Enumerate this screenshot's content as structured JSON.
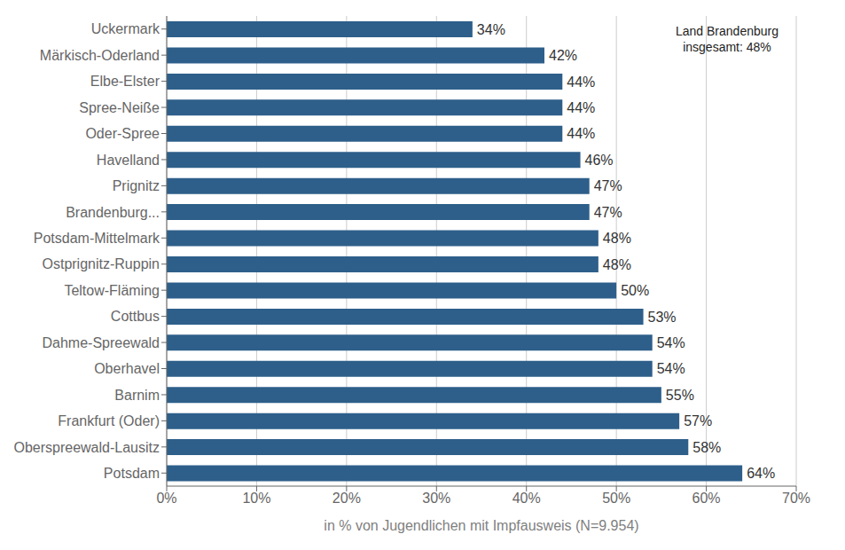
{
  "chart_data": {
    "type": "bar",
    "orientation": "horizontal",
    "categories": [
      "Uckermark",
      "Märkisch-Oderland",
      "Elbe-Elster",
      "Spree-Neiße",
      "Oder-Spree",
      "Havelland",
      "Prignitz",
      "Brandenburg...",
      "Potsdam-Mittelmark",
      "Ostprignitz-Ruppin",
      "Teltow-Fläming",
      "Cottbus",
      "Dahme-Spreewald",
      "Oberhavel",
      "Barnim",
      "Frankfurt (Oder)",
      "Oberspreewald-Lausitz",
      "Potsdam"
    ],
    "values": [
      34,
      42,
      44,
      44,
      44,
      46,
      47,
      47,
      48,
      48,
      50,
      53,
      54,
      54,
      55,
      57,
      58,
      64
    ],
    "value_labels": [
      "34%",
      "42%",
      "44%",
      "44%",
      "44%",
      "46%",
      "47%",
      "47%",
      "48%",
      "48%",
      "50%",
      "53%",
      "54%",
      "54%",
      "55%",
      "57%",
      "58%",
      "64%"
    ],
    "data_labels": true,
    "color": "#2E5F8A",
    "xlabel": "in % von Jugendlichen mit Impfausweis (N=9.954)",
    "xlim": [
      0,
      70
    ],
    "xticks": [
      {
        "value": 0,
        "label": "0%"
      },
      {
        "value": 10,
        "label": "10%"
      },
      {
        "value": 20,
        "label": "20%"
      },
      {
        "value": 30,
        "label": "30%"
      },
      {
        "value": 40,
        "label": "40%"
      },
      {
        "value": 50,
        "label": "50%"
      },
      {
        "value": 60,
        "label": "60%"
      },
      {
        "value": 70,
        "label": "70%"
      }
    ],
    "grid": true,
    "annotations": [
      "Land Brandenburg\ninsgesamt: 48%"
    ]
  }
}
